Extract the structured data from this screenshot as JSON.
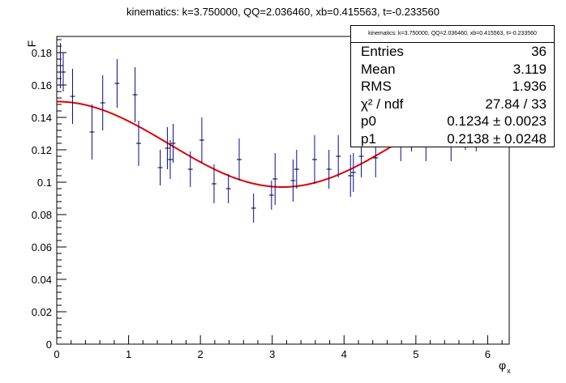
{
  "chart_data": {
    "type": "scatter",
    "title": "kinematics: k=3.750000, QQ=2.036460, xb=0.415563, t=-0.233560",
    "xlabel": "φ_x",
    "xlabel_main": "φ",
    "xlabel_sub": "x",
    "ylabel": "F",
    "xlim": [
      0,
      6.3
    ],
    "ylim": [
      0,
      0.19
    ],
    "x_ticks": [
      0,
      1,
      2,
      3,
      4,
      5,
      6
    ],
    "y_ticks": [
      0,
      0.02,
      0.04,
      0.06,
      0.08,
      0.1,
      0.12,
      0.14,
      0.16,
      0.18
    ],
    "x_tick_labels": [
      "0",
      "1",
      "2",
      "3",
      "4",
      "5",
      "6"
    ],
    "y_tick_labels": [
      "0",
      "0.02",
      "0.04",
      "0.06",
      "0.08",
      "0.1",
      "0.12",
      "0.14",
      "0.16",
      "0.18"
    ],
    "grid": false,
    "marker_color": "#0a0a8c",
    "fit_color": "#e00000",
    "points": [
      {
        "x": 0.05,
        "y": 0.172,
        "err": 0.014
      },
      {
        "x": 0.09,
        "y": 0.168,
        "err": 0.012
      },
      {
        "x": 0.22,
        "y": 0.153,
        "err": 0.017
      },
      {
        "x": 0.49,
        "y": 0.131,
        "err": 0.017
      },
      {
        "x": 0.64,
        "y": 0.149,
        "err": 0.017
      },
      {
        "x": 0.84,
        "y": 0.161,
        "err": 0.015
      },
      {
        "x": 1.09,
        "y": 0.154,
        "err": 0.017
      },
      {
        "x": 1.14,
        "y": 0.124,
        "err": 0.014
      },
      {
        "x": 1.44,
        "y": 0.109,
        "err": 0.011
      },
      {
        "x": 1.54,
        "y": 0.121,
        "err": 0.013
      },
      {
        "x": 1.58,
        "y": 0.114,
        "err": 0.012
      },
      {
        "x": 1.62,
        "y": 0.124,
        "err": 0.012
      },
      {
        "x": 1.86,
        "y": 0.108,
        "err": 0.011
      },
      {
        "x": 2.02,
        "y": 0.126,
        "err": 0.014
      },
      {
        "x": 2.19,
        "y": 0.099,
        "err": 0.012
      },
      {
        "x": 2.39,
        "y": 0.096,
        "err": 0.009
      },
      {
        "x": 2.54,
        "y": 0.114,
        "err": 0.013
      },
      {
        "x": 2.74,
        "y": 0.084,
        "err": 0.009
      },
      {
        "x": 2.99,
        "y": 0.092,
        "err": 0.009
      },
      {
        "x": 3.04,
        "y": 0.102,
        "err": 0.016
      },
      {
        "x": 3.29,
        "y": 0.101,
        "err": 0.013
      },
      {
        "x": 3.34,
        "y": 0.108,
        "err": 0.012
      },
      {
        "x": 3.59,
        "y": 0.114,
        "err": 0.015
      },
      {
        "x": 3.79,
        "y": 0.108,
        "err": 0.012
      },
      {
        "x": 3.92,
        "y": 0.116,
        "err": 0.013
      },
      {
        "x": 4.09,
        "y": 0.104,
        "err": 0.013
      },
      {
        "x": 4.13,
        "y": 0.106,
        "err": 0.012
      },
      {
        "x": 4.24,
        "y": 0.116,
        "err": 0.013
      },
      {
        "x": 4.44,
        "y": 0.115,
        "err": 0.012
      },
      {
        "x": 4.79,
        "y": 0.125,
        "err": 0.012
      },
      {
        "x": 4.94,
        "y": 0.131,
        "err": 0.012
      },
      {
        "x": 5.14,
        "y": 0.125,
        "err": 0.012
      },
      {
        "x": 5.49,
        "y": 0.123,
        "err": 0.01
      },
      {
        "x": 5.69,
        "y": 0.132,
        "err": 0.012
      },
      {
        "x": 5.84,
        "y": 0.131,
        "err": 0.012
      },
      {
        "x": 6.19,
        "y": 0.144,
        "err": 0.01
      }
    ],
    "fit": {
      "p0": 0.1234,
      "p1": 0.2138
    }
  },
  "stats": {
    "header": "kinematics: k=3.750000, QQ=2.036460, xb=0.415563, t=-0.233560",
    "rows": [
      {
        "label": "Entries",
        "value": "36"
      },
      {
        "label": "Mean",
        "value": "3.119"
      },
      {
        "label": "RMS",
        "value": "1.936"
      },
      {
        "label": "χ² / ndf",
        "value": "27.84 / 33"
      },
      {
        "label": "p0",
        "value": "0.1234 ± 0.0023"
      },
      {
        "label": "p1",
        "value": "0.2138 ± 0.0248"
      }
    ]
  }
}
